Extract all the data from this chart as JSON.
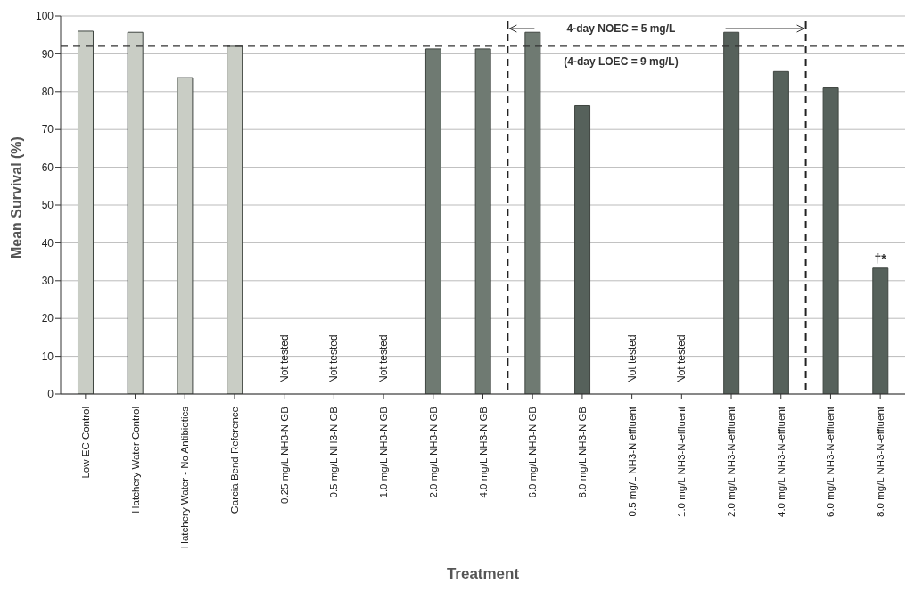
{
  "chart_data": {
    "type": "bar",
    "xlabel": "Treatment",
    "ylabel": "Mean Survival (%)",
    "categories": [
      "Low EC Control",
      "Hatchery Water Control",
      "Hatchery Water - No Antibiotics",
      "Garcia Bend Reference",
      "0.25 mg/L NH3-N GB",
      "0.5 mg/L NH3-N GB",
      "1.0 mg/L NH3-N GB",
      "2.0 mg/L NH3-N GB",
      "4.0 mg/L NH3-N GB",
      "6.0 mg/L NH3-N GB",
      "8.0 mg/L NH3-N GB",
      "0.5 mg/L NH3-N effluent",
      "1.0 mg/L NH3-N-effluent",
      "2.0 mg/L NH3-N-effluent",
      "4.0 mg/L NH3-N-effluent",
      "6.0 mg/L NH3-N-effluent",
      "8.0 mg/L NH3-N-effluent"
    ],
    "values": [
      96,
      95.7,
      83.7,
      92,
      null,
      null,
      null,
      91.3,
      91.3,
      95.7,
      76.3,
      null,
      null,
      95.7,
      85.3,
      81,
      33.3
    ],
    "colors": [
      "#c9cdc5",
      "#c9cdc5",
      "#c9cdc5",
      "#c9cdc5",
      "#6f7a72",
      "#6f7a72",
      "#6f7a72",
      "#6f7a72",
      "#6f7a72",
      "#6f7a72",
      "#56615b",
      "#56615b",
      "#56615b",
      "#56615b",
      "#56615b",
      "#56615b",
      "#56615b"
    ],
    "ylim": [
      0,
      100
    ],
    "yticks": [
      0,
      10,
      20,
      30,
      40,
      50,
      60,
      70,
      80,
      90,
      100
    ],
    "grid": "y",
    "ref_lines": [
      {
        "axis": "y",
        "value": 92,
        "line_style": "dashed",
        "color": "#333333"
      }
    ],
    "annotations": [
      "4-day NOEC = 5 mg/L",
      "(4-day LOEC =  9 mg/L)",
      "Not tested",
      "Not tested",
      "Not tested",
      "Not tested",
      "Not tested",
      {
        "text": "†*",
        "x": "8.0 mg/L NH3-N-effluent",
        "y": 33.3
      }
    ]
  }
}
